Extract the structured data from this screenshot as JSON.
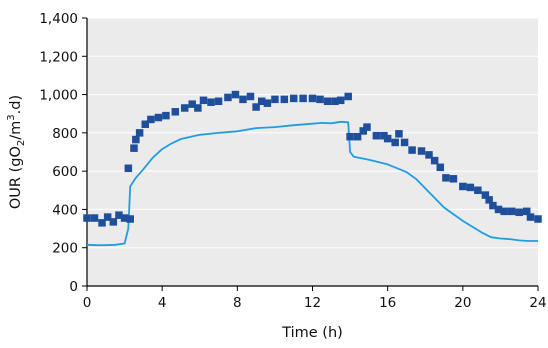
{
  "chart_data": {
    "type": "scatter",
    "xlabel": "Time (h)",
    "ylabel_main": "OUR (gO",
    "ylabel_sub": "2",
    "ylabel_mid": "/m",
    "ylabel_sup": "3",
    "ylabel_end": ".d)",
    "xlim": [
      0,
      24
    ],
    "ylim": [
      0,
      1400
    ],
    "x_ticks": [
      0,
      4,
      8,
      12,
      16,
      20,
      24
    ],
    "y_ticks": [
      0,
      200,
      400,
      600,
      800,
      1000,
      1200,
      1400
    ],
    "x_tick_labels": [
      "0",
      "4",
      "8",
      "12",
      "16",
      "20",
      "24"
    ],
    "y_tick_labels": [
      "0",
      "200",
      "400",
      "600",
      "800",
      "1,000",
      "1,200",
      "1,400"
    ],
    "grid": true,
    "plot_background": "#ebebeb",
    "series": [
      {
        "kind": "markers",
        "color": "#1f4f9a",
        "points": [
          [
            0.0,
            355
          ],
          [
            0.4,
            355
          ],
          [
            0.8,
            330
          ],
          [
            1.1,
            360
          ],
          [
            1.4,
            335
          ],
          [
            1.7,
            370
          ],
          [
            2.0,
            355
          ],
          [
            2.3,
            350
          ],
          [
            2.2,
            615
          ],
          [
            2.5,
            720
          ],
          [
            2.6,
            765
          ],
          [
            2.8,
            800
          ],
          [
            3.1,
            845
          ],
          [
            3.4,
            870
          ],
          [
            3.8,
            880
          ],
          [
            4.2,
            890
          ],
          [
            4.7,
            910
          ],
          [
            5.2,
            930
          ],
          [
            5.6,
            950
          ],
          [
            5.9,
            930
          ],
          [
            6.2,
            970
          ],
          [
            6.6,
            960
          ],
          [
            7.0,
            965
          ],
          [
            7.5,
            985
          ],
          [
            7.9,
            1000
          ],
          [
            8.3,
            975
          ],
          [
            8.7,
            990
          ],
          [
            9.0,
            935
          ],
          [
            9.3,
            965
          ],
          [
            9.6,
            955
          ],
          [
            10.0,
            975
          ],
          [
            10.5,
            975
          ],
          [
            11.0,
            980
          ],
          [
            11.5,
            980
          ],
          [
            12.0,
            980
          ],
          [
            12.4,
            975
          ],
          [
            12.8,
            965
          ],
          [
            13.2,
            965
          ],
          [
            13.5,
            970
          ],
          [
            13.9,
            990
          ],
          [
            14.0,
            780
          ],
          [
            14.4,
            780
          ],
          [
            14.7,
            810
          ],
          [
            14.9,
            830
          ],
          [
            15.4,
            785
          ],
          [
            15.8,
            785
          ],
          [
            16.0,
            770
          ],
          [
            16.4,
            750
          ],
          [
            16.6,
            795
          ],
          [
            16.9,
            750
          ],
          [
            17.3,
            710
          ],
          [
            17.8,
            705
          ],
          [
            18.2,
            685
          ],
          [
            18.5,
            655
          ],
          [
            18.8,
            620
          ],
          [
            19.1,
            565
          ],
          [
            19.5,
            560
          ],
          [
            20.0,
            520
          ],
          [
            20.4,
            515
          ],
          [
            20.8,
            500
          ],
          [
            21.2,
            475
          ],
          [
            21.4,
            450
          ],
          [
            21.6,
            420
          ],
          [
            21.9,
            400
          ],
          [
            22.2,
            390
          ],
          [
            22.6,
            390
          ],
          [
            23.0,
            385
          ],
          [
            23.4,
            390
          ],
          [
            23.6,
            360
          ],
          [
            24.0,
            350
          ]
        ]
      },
      {
        "kind": "line",
        "color": "#1f9de0",
        "points": [
          [
            0.0,
            215
          ],
          [
            0.5,
            213
          ],
          [
            1.0,
            213
          ],
          [
            1.5,
            215
          ],
          [
            2.0,
            222
          ],
          [
            2.2,
            300
          ],
          [
            2.3,
            520
          ],
          [
            2.6,
            565
          ],
          [
            3.0,
            610
          ],
          [
            3.5,
            670
          ],
          [
            4.0,
            715
          ],
          [
            4.5,
            745
          ],
          [
            5.0,
            768
          ],
          [
            6.0,
            790
          ],
          [
            7.0,
            800
          ],
          [
            8.0,
            808
          ],
          [
            9.0,
            825
          ],
          [
            10.0,
            830
          ],
          [
            11.0,
            840
          ],
          [
            12.0,
            848
          ],
          [
            12.5,
            852
          ],
          [
            13.0,
            850
          ],
          [
            13.5,
            858
          ],
          [
            13.9,
            855
          ],
          [
            14.0,
            700
          ],
          [
            14.2,
            675
          ],
          [
            15.0,
            660
          ],
          [
            16.0,
            635
          ],
          [
            17.0,
            595
          ],
          [
            17.5,
            560
          ],
          [
            18.0,
            510
          ],
          [
            18.5,
            460
          ],
          [
            19.0,
            410
          ],
          [
            20.0,
            340
          ],
          [
            21.0,
            280
          ],
          [
            21.5,
            255
          ],
          [
            22.0,
            248
          ],
          [
            22.5,
            245
          ],
          [
            23.0,
            238
          ],
          [
            23.5,
            235
          ],
          [
            24.0,
            235
          ]
        ]
      }
    ]
  }
}
